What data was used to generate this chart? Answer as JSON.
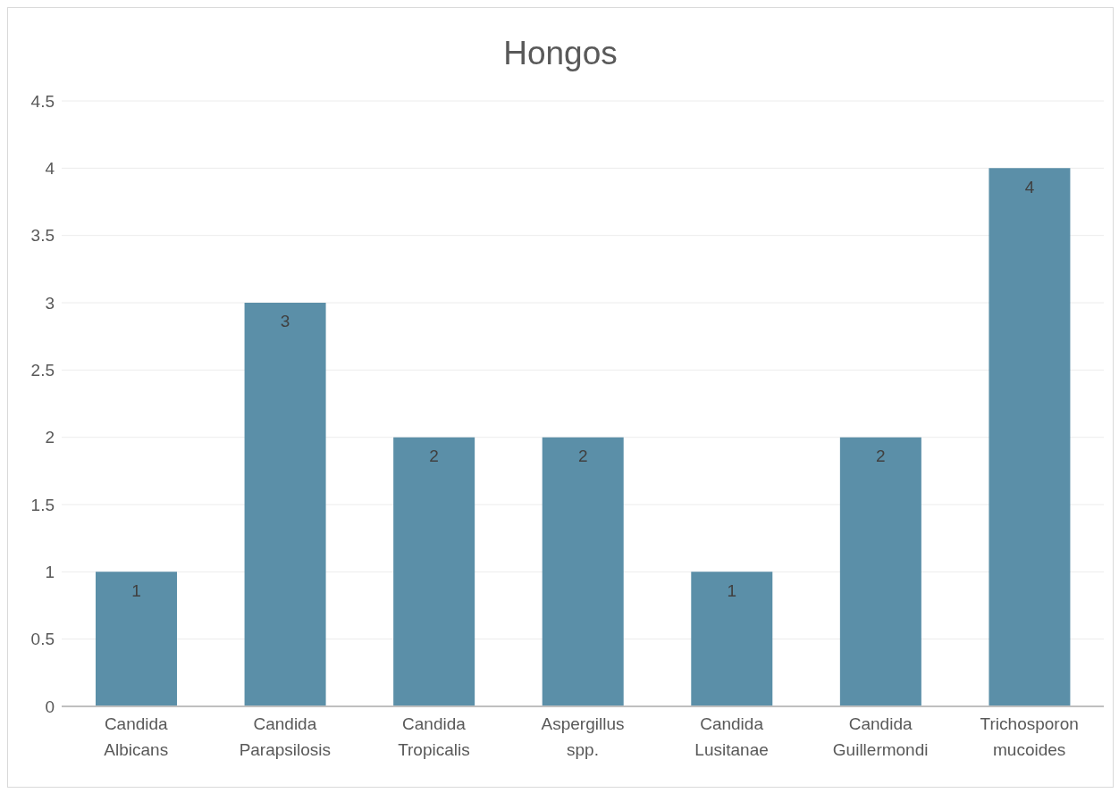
{
  "chart_data": {
    "type": "bar",
    "title": "Hongos",
    "categories": [
      "Candida Albicans",
      "Candida Parapsilosis",
      "Candida Tropicalis",
      "Aspergillus spp.",
      "Candida Lusitanae",
      "Candida Guillermondi",
      "Trichosporon mucoides"
    ],
    "values": [
      1,
      3,
      2,
      2,
      1,
      2,
      4
    ],
    "color": "#5b8fa8",
    "ylim": [
      0,
      4.5
    ],
    "yticks": [
      0,
      0.5,
      1,
      1.5,
      2,
      2.5,
      3,
      3.5,
      4,
      4.5
    ],
    "grid": "y",
    "data_labels": true
  }
}
